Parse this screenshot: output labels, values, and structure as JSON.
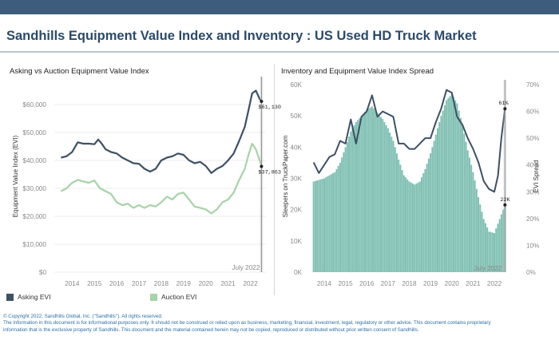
{
  "title": "Sandhills Equipment Value Index and Inventory : US Used HD Truck Market",
  "colors": {
    "asking": "#3d5166",
    "auction": "#a6d3a8",
    "bars": "#7fbfb2",
    "spread": "#3d5166",
    "band": "#2b4a6b",
    "axis_text": "#8a8a8a"
  },
  "left_chart": {
    "title": "Asking vs Auction Equipment Value Index",
    "ylabel": "Equipment Value Index (EVI)",
    "july_label": "July 2022"
  },
  "right_chart": {
    "title": "Inventory and Equipment Value Index Spread",
    "ylabel_left": "Sleepers on TruckPaper.com",
    "ylabel_right": "EVI Spread",
    "july_label": "July 2022"
  },
  "legend": {
    "asking": "Asking EVI",
    "auction": "Auction EVI"
  },
  "footer": {
    "line1": "© Copyright 2022, Sandhills Global, Inc. (\"Sandhills\"). All rights reserved.",
    "line2": "The information in this document is for informational purposes only.  It should not be construed or relied upon as business, marketing, financial, investment, legal, regulatory or other advice. This document contains proprietary",
    "line3": "information that is the exclusive property of Sandhills. This document and the material contained herein may not be copied, reproduced or distributed without prior written consent of Sandhills."
  },
  "chart_data": [
    {
      "type": "line",
      "title": "Asking vs Auction Equipment Value Index",
      "ylabel": "Equipment Value Index (EVI)",
      "xlim": [
        2013.2,
        2022.7
      ],
      "ylim": [
        0,
        70000
      ],
      "yticks": [
        0,
        10000,
        20000,
        30000,
        40000,
        50000,
        60000
      ],
      "ytick_labels": [
        "$0",
        "$10,000",
        "$20,000",
        "$30,000",
        "$40,000",
        "$50,000",
        "$60,000"
      ],
      "xticks": [
        2014,
        2015,
        2016,
        2017,
        2018,
        2019,
        2020,
        2021,
        2022
      ],
      "xtick_labels": [
        "2014",
        "2015",
        "2016",
        "2017",
        "2018",
        "2019",
        "2020",
        "2021",
        "2022"
      ],
      "marker_x": 2022.5,
      "marker_label": "July 2022",
      "series": [
        {
          "name": "Asking EVI",
          "x": [
            2013.5,
            2013.75,
            2014.0,
            2014.25,
            2014.5,
            2014.75,
            2015.0,
            2015.17,
            2015.33,
            2015.5,
            2015.75,
            2016.0,
            2016.25,
            2016.5,
            2016.75,
            2017.0,
            2017.25,
            2017.5,
            2017.75,
            2018.0,
            2018.25,
            2018.5,
            2018.75,
            2019.0,
            2019.25,
            2019.5,
            2019.75,
            2020.0,
            2020.25,
            2020.5,
            2020.75,
            2021.0,
            2021.25,
            2021.5,
            2021.75,
            2021.92,
            2022.08,
            2022.25,
            2022.42,
            2022.5
          ],
          "values": [
            41000,
            41500,
            43000,
            46500,
            46000,
            46000,
            45800,
            47500,
            46000,
            44000,
            43000,
            42500,
            41000,
            40000,
            39000,
            38800,
            37000,
            36000,
            37000,
            40000,
            41000,
            41500,
            42500,
            42000,
            40000,
            39000,
            39500,
            38000,
            35500,
            37000,
            38000,
            40000,
            42500,
            47000,
            52000,
            58000,
            64000,
            65000,
            62000,
            61130
          ],
          "end_label": "$61,130"
        },
        {
          "name": "Auction EVI",
          "x": [
            2013.5,
            2013.75,
            2014.0,
            2014.25,
            2014.5,
            2014.75,
            2015.0,
            2015.25,
            2015.5,
            2015.75,
            2016.0,
            2016.25,
            2016.5,
            2016.75,
            2017.0,
            2017.25,
            2017.5,
            2017.75,
            2018.0,
            2018.25,
            2018.5,
            2018.75,
            2019.0,
            2019.25,
            2019.5,
            2019.75,
            2020.0,
            2020.25,
            2020.5,
            2020.75,
            2021.0,
            2021.25,
            2021.5,
            2021.75,
            2021.92,
            2022.08,
            2022.25,
            2022.42,
            2022.5
          ],
          "values": [
            29000,
            30000,
            32000,
            33000,
            32500,
            32000,
            32800,
            30000,
            29000,
            28000,
            25000,
            24000,
            24500,
            23000,
            24000,
            23000,
            24000,
            23500,
            25000,
            27000,
            26000,
            28000,
            28500,
            26000,
            23500,
            23000,
            22500,
            21000,
            22500,
            25000,
            26000,
            28500,
            33000,
            37000,
            42000,
            46000,
            44000,
            40000,
            37863
          ],
          "end_label": "$37,863"
        }
      ]
    },
    {
      "type": "bar",
      "title": "Inventory and Equipment Value Index Spread",
      "ylabel_left": "Sleepers on TruckPaper.com",
      "ylabel_right": "EVI Spread",
      "xlim": [
        2013.25,
        2022.75
      ],
      "ylim_left": [
        0,
        60000
      ],
      "ylim_right": [
        0,
        70
      ],
      "yticks_left": [
        0,
        10000,
        20000,
        30000,
        40000,
        50000,
        60000
      ],
      "ytick_labels_left": [
        "0K",
        "10K",
        "20K",
        "30K",
        "40K",
        "50K",
        "60K"
      ],
      "yticks_right": [
        0,
        10,
        20,
        30,
        40,
        50,
        60,
        70
      ],
      "ytick_labels_right": [
        "0%",
        "10%",
        "20%",
        "30%",
        "40%",
        "50%",
        "60%",
        "70%"
      ],
      "xticks": [
        2014,
        2015,
        2016,
        2017,
        2018,
        2019,
        2020,
        2021,
        2022
      ],
      "xtick_labels": [
        "2014",
        "2015",
        "2016",
        "2017",
        "2018",
        "2019",
        "2020",
        "2021",
        "2022"
      ],
      "marker_x": 2022.5,
      "marker_label": "July 2022",
      "inventory": {
        "name": "Sleepers on TruckPaper.com",
        "x": [
          2013.5,
          2013.75,
          2014.0,
          2014.25,
          2014.5,
          2014.75,
          2015.0,
          2015.25,
          2015.5,
          2015.75,
          2016.0,
          2016.25,
          2016.5,
          2016.75,
          2017.0,
          2017.25,
          2017.5,
          2017.75,
          2018.0,
          2018.25,
          2018.5,
          2018.75,
          2019.0,
          2019.25,
          2019.5,
          2019.75,
          2020.0,
          2020.25,
          2020.5,
          2020.75,
          2021.0,
          2021.25,
          2021.5,
          2021.75,
          2022.0,
          2022.25,
          2022.5
        ],
        "values": [
          29000,
          29500,
          30000,
          31000,
          32000,
          35000,
          40000,
          45000,
          48000,
          50000,
          52000,
          53000,
          51000,
          49000,
          46000,
          42000,
          36000,
          31000,
          29000,
          28000,
          29000,
          33000,
          38000,
          44000,
          50000,
          55000,
          57000,
          54000,
          47000,
          39000,
          32000,
          24000,
          17000,
          13000,
          12500,
          17000,
          21500
        ],
        "end_label": "22K"
      },
      "spread": {
        "name": "EVI Spread",
        "x": [
          2013.5,
          2013.75,
          2014.0,
          2014.25,
          2014.5,
          2014.75,
          2015.0,
          2015.25,
          2015.5,
          2015.75,
          2016.0,
          2016.25,
          2016.5,
          2016.75,
          2017.0,
          2017.25,
          2017.5,
          2017.75,
          2018.0,
          2018.25,
          2018.5,
          2018.75,
          2019.0,
          2019.25,
          2019.5,
          2019.75,
          2020.0,
          2020.25,
          2020.5,
          2020.75,
          2021.0,
          2021.25,
          2021.5,
          2021.75,
          2022.0,
          2022.17,
          2022.33,
          2022.5
        ],
        "values": [
          41,
          37,
          40,
          43,
          44,
          49,
          48,
          57,
          48,
          58,
          60,
          66,
          58,
          60,
          59,
          58,
          48,
          48,
          46,
          46,
          48,
          50,
          50,
          56,
          61,
          68,
          67,
          58,
          55,
          50,
          46,
          41,
          34,
          31,
          30,
          36,
          50,
          61
        ],
        "end_label": "61%"
      }
    }
  ]
}
